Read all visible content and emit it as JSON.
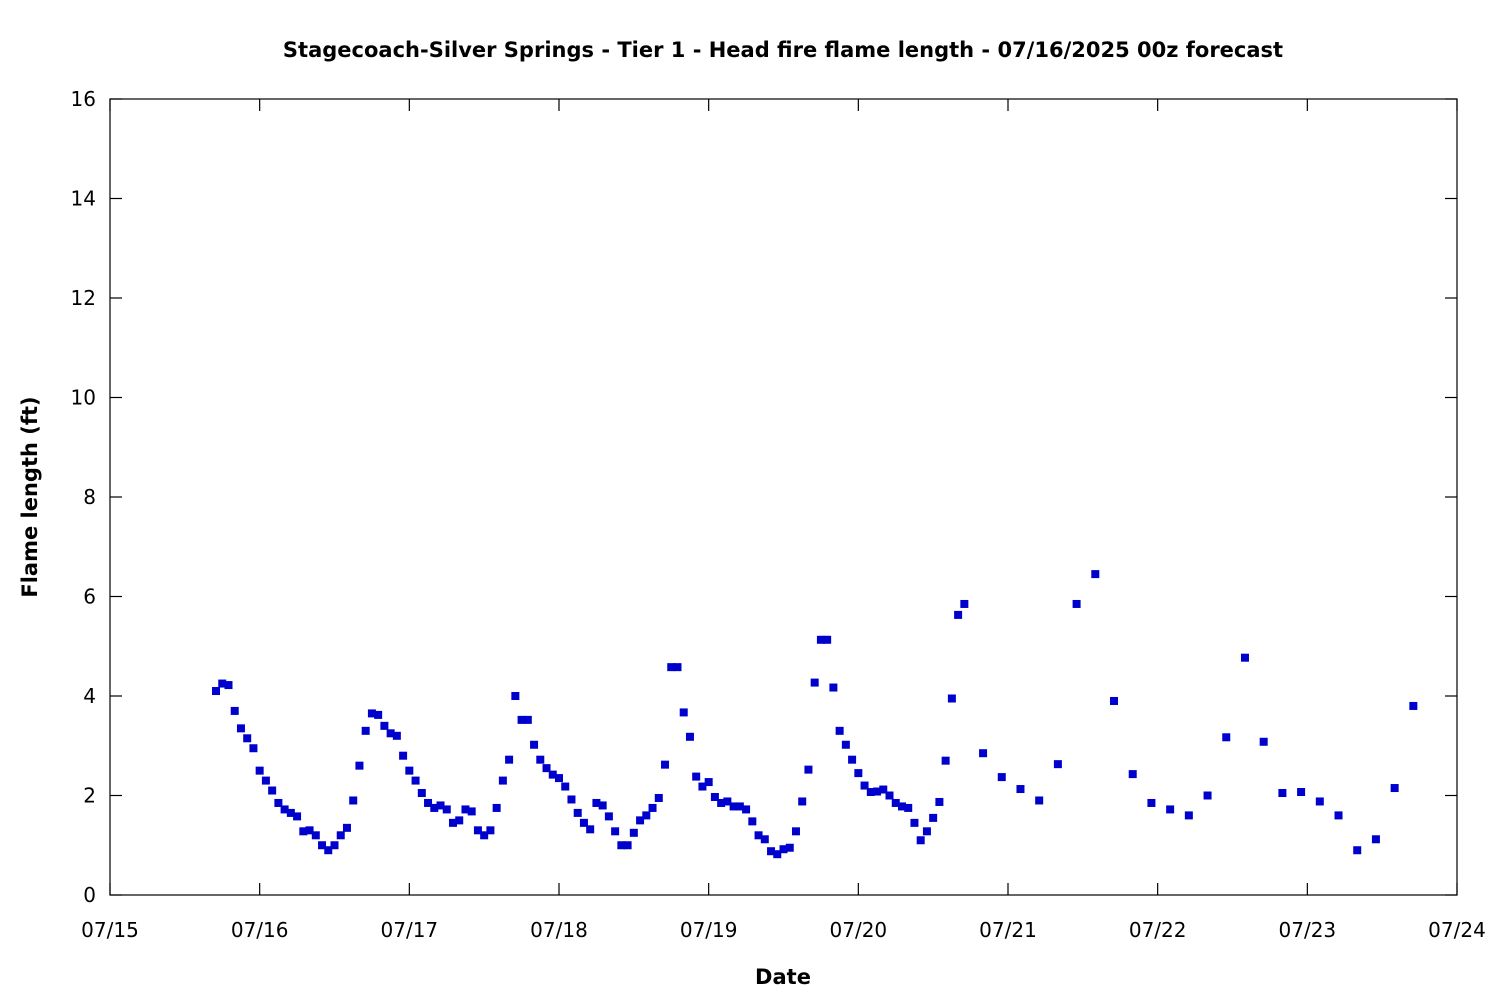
{
  "chart_data": {
    "type": "scatter",
    "title": "Stagecoach-Silver Springs - Tier 1 - Head fire flame length - 07/16/2025 00z forecast",
    "xlabel": "Date",
    "ylabel": "Flame length (ft)",
    "xlim": [
      "07/15",
      "07/24"
    ],
    "ylim": [
      0,
      16
    ],
    "x_ticks": [
      "07/15",
      "07/16",
      "07/17",
      "07/18",
      "07/19",
      "07/20",
      "07/21",
      "07/22",
      "07/23",
      "07/24"
    ],
    "y_ticks": [
      0,
      2,
      4,
      6,
      8,
      10,
      12,
      14,
      16
    ],
    "grid": false,
    "legend": "none",
    "marker_color": "#0000cc",
    "marker": "square",
    "series": [
      {
        "points": [
          [
            "07/15 17:00",
            4.1
          ],
          [
            "07/15 18:00",
            4.25
          ],
          [
            "07/15 19:00",
            4.22
          ],
          [
            "07/15 20:00",
            3.7
          ],
          [
            "07/15 21:00",
            3.35
          ],
          [
            "07/15 22:00",
            3.15
          ],
          [
            "07/15 23:00",
            2.95
          ],
          [
            "07/16 00:00",
            2.5
          ],
          [
            "07/16 01:00",
            2.3
          ],
          [
            "07/16 02:00",
            2.1
          ],
          [
            "07/16 03:00",
            1.85
          ],
          [
            "07/16 04:00",
            1.72
          ],
          [
            "07/16 05:00",
            1.65
          ],
          [
            "07/16 06:00",
            1.58
          ],
          [
            "07/16 07:00",
            1.28
          ],
          [
            "07/16 08:00",
            1.3
          ],
          [
            "07/16 09:00",
            1.2
          ],
          [
            "07/16 10:00",
            1.0
          ],
          [
            "07/16 11:00",
            0.9
          ],
          [
            "07/16 12:00",
            1.0
          ],
          [
            "07/16 13:00",
            1.2
          ],
          [
            "07/16 14:00",
            1.35
          ],
          [
            "07/16 15:00",
            1.9
          ],
          [
            "07/16 16:00",
            2.6
          ],
          [
            "07/16 17:00",
            3.3
          ],
          [
            "07/16 18:00",
            3.65
          ],
          [
            "07/16 19:00",
            3.62
          ],
          [
            "07/16 20:00",
            3.4
          ],
          [
            "07/16 21:00",
            3.25
          ],
          [
            "07/16 22:00",
            3.2
          ],
          [
            "07/16 23:00",
            2.8
          ],
          [
            "07/17 00:00",
            2.5
          ],
          [
            "07/17 01:00",
            2.3
          ],
          [
            "07/17 02:00",
            2.05
          ],
          [
            "07/17 03:00",
            1.85
          ],
          [
            "07/17 04:00",
            1.75
          ],
          [
            "07/17 05:00",
            1.8
          ],
          [
            "07/17 06:00",
            1.72
          ],
          [
            "07/17 07:00",
            1.45
          ],
          [
            "07/17 08:00",
            1.5
          ],
          [
            "07/17 09:00",
            1.72
          ],
          [
            "07/17 10:00",
            1.68
          ],
          [
            "07/17 11:00",
            1.3
          ],
          [
            "07/17 12:00",
            1.2
          ],
          [
            "07/17 13:00",
            1.3
          ],
          [
            "07/17 14:00",
            1.75
          ],
          [
            "07/17 15:00",
            2.3
          ],
          [
            "07/17 16:00",
            2.72
          ],
          [
            "07/17 17:00",
            4.0
          ],
          [
            "07/17 18:00",
            3.52
          ],
          [
            "07/17 19:00",
            3.52
          ],
          [
            "07/17 20:00",
            3.02
          ],
          [
            "07/17 21:00",
            2.72
          ],
          [
            "07/17 22:00",
            2.55
          ],
          [
            "07/17 23:00",
            2.42
          ],
          [
            "07/18 00:00",
            2.35
          ],
          [
            "07/18 01:00",
            2.18
          ],
          [
            "07/18 02:00",
            1.92
          ],
          [
            "07/18 03:00",
            1.65
          ],
          [
            "07/18 04:00",
            1.45
          ],
          [
            "07/18 05:00",
            1.32
          ],
          [
            "07/18 06:00",
            1.85
          ],
          [
            "07/18 07:00",
            1.8
          ],
          [
            "07/18 08:00",
            1.58
          ],
          [
            "07/18 09:00",
            1.28
          ],
          [
            "07/18 10:00",
            1.0
          ],
          [
            "07/18 11:00",
            1.0
          ],
          [
            "07/18 12:00",
            1.25
          ],
          [
            "07/18 13:00",
            1.5
          ],
          [
            "07/18 14:00",
            1.6
          ],
          [
            "07/18 15:00",
            1.75
          ],
          [
            "07/18 16:00",
            1.95
          ],
          [
            "07/18 17:00",
            2.62
          ],
          [
            "07/18 18:00",
            4.58
          ],
          [
            "07/18 19:00",
            4.58
          ],
          [
            "07/18 20:00",
            3.67
          ],
          [
            "07/18 21:00",
            3.18
          ],
          [
            "07/18 22:00",
            2.38
          ],
          [
            "07/18 23:00",
            2.18
          ],
          [
            "07/19 00:00",
            2.27
          ],
          [
            "07/19 01:00",
            1.97
          ],
          [
            "07/19 02:00",
            1.85
          ],
          [
            "07/19 03:00",
            1.88
          ],
          [
            "07/19 04:00",
            1.78
          ],
          [
            "07/19 05:00",
            1.78
          ],
          [
            "07/19 06:00",
            1.72
          ],
          [
            "07/19 07:00",
            1.48
          ],
          [
            "07/19 08:00",
            1.2
          ],
          [
            "07/19 09:00",
            1.12
          ],
          [
            "07/19 10:00",
            0.88
          ],
          [
            "07/19 11:00",
            0.82
          ],
          [
            "07/19 12:00",
            0.92
          ],
          [
            "07/19 13:00",
            0.95
          ],
          [
            "07/19 14:00",
            1.28
          ],
          [
            "07/19 15:00",
            1.88
          ],
          [
            "07/19 16:00",
            2.52
          ],
          [
            "07/19 17:00",
            4.27
          ],
          [
            "07/19 18:00",
            5.13
          ],
          [
            "07/19 19:00",
            5.13
          ],
          [
            "07/19 20:00",
            4.17
          ],
          [
            "07/19 21:00",
            3.3
          ],
          [
            "07/19 22:00",
            3.02
          ],
          [
            "07/19 23:00",
            2.72
          ],
          [
            "07/20 00:00",
            2.45
          ],
          [
            "07/20 01:00",
            2.2
          ],
          [
            "07/20 02:00",
            2.07
          ],
          [
            "07/20 03:00",
            2.08
          ],
          [
            "07/20 04:00",
            2.12
          ],
          [
            "07/20 05:00",
            2.0
          ],
          [
            "07/20 06:00",
            1.85
          ],
          [
            "07/20 07:00",
            1.78
          ],
          [
            "07/20 08:00",
            1.75
          ],
          [
            "07/20 09:00",
            1.45
          ],
          [
            "07/20 10:00",
            1.1
          ],
          [
            "07/20 11:00",
            1.28
          ],
          [
            "07/20 12:00",
            1.55
          ],
          [
            "07/20 13:00",
            1.87
          ],
          [
            "07/20 14:00",
            2.7
          ],
          [
            "07/20 15:00",
            3.95
          ],
          [
            "07/20 16:00",
            5.63
          ],
          [
            "07/20 17:00",
            5.85
          ],
          [
            "07/20 20:00",
            2.85
          ],
          [
            "07/20 23:00",
            2.37
          ],
          [
            "07/21 02:00",
            2.13
          ],
          [
            "07/21 05:00",
            1.9
          ],
          [
            "07/21 08:00",
            2.63
          ],
          [
            "07/21 11:00",
            5.85
          ],
          [
            "07/21 14:00",
            6.45
          ],
          [
            "07/21 17:00",
            3.9
          ],
          [
            "07/21 20:00",
            2.43
          ],
          [
            "07/21 23:00",
            1.85
          ],
          [
            "07/22 02:00",
            1.72
          ],
          [
            "07/22 05:00",
            1.6
          ],
          [
            "07/22 08:00",
            2.0
          ],
          [
            "07/22 11:00",
            3.17
          ],
          [
            "07/22 14:00",
            4.77
          ],
          [
            "07/22 17:00",
            3.08
          ],
          [
            "07/22 20:00",
            2.05
          ],
          [
            "07/22 23:00",
            2.07
          ],
          [
            "07/23 02:00",
            1.88
          ],
          [
            "07/23 05:00",
            1.6
          ],
          [
            "07/23 08:00",
            0.9
          ],
          [
            "07/23 11:00",
            1.12
          ],
          [
            "07/23 14:00",
            2.15
          ],
          [
            "07/23 17:00",
            3.8
          ]
        ]
      }
    ]
  }
}
